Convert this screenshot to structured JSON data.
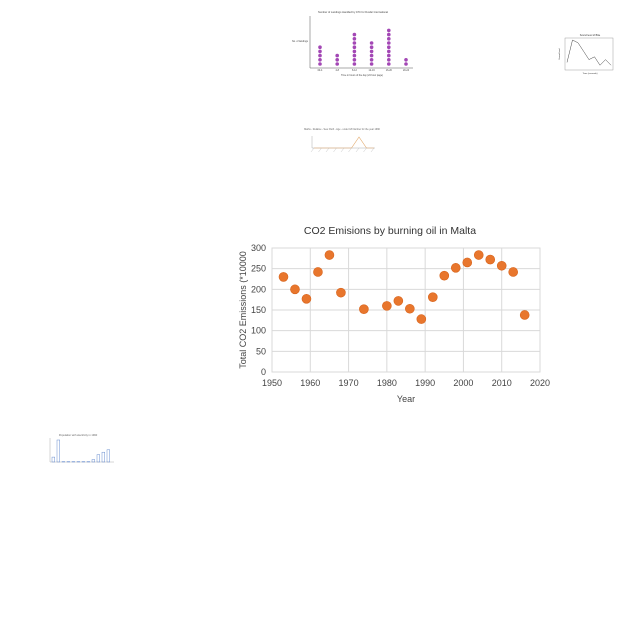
{
  "chart_data": [
    {
      "type": "scatter",
      "title": "CO2 Emisions by burning oil in Malta",
      "xlabel": "Year",
      "ylabel": "Total CO2 Emissions (*10000",
      "xlim": [
        1950,
        2020
      ],
      "ylim": [
        0,
        300
      ],
      "xticks": [
        1950,
        1960,
        1970,
        1980,
        1990,
        2000,
        2010,
        2020
      ],
      "yticks": [
        0,
        50,
        100,
        150,
        200,
        250,
        300
      ],
      "grid": true,
      "marker_color": "#e8762d",
      "points": [
        [
          1953,
          230
        ],
        [
          1956,
          200
        ],
        [
          1959,
          177
        ],
        [
          1962,
          242
        ],
        [
          1965,
          283
        ],
        [
          1968,
          192
        ],
        [
          1974,
          152
        ],
        [
          1980,
          160
        ],
        [
          1983,
          172
        ],
        [
          1986,
          153
        ],
        [
          1989,
          128
        ],
        [
          1992,
          181
        ],
        [
          1995,
          233
        ],
        [
          1998,
          252
        ],
        [
          2001,
          265
        ],
        [
          2004,
          283
        ],
        [
          2007,
          272
        ],
        [
          2010,
          257
        ],
        [
          2013,
          242
        ],
        [
          2016,
          138
        ]
      ]
    },
    {
      "type": "dot",
      "title": "Number of Landings Handled by ATC for Dusfar International",
      "xlabel": "Time in hours of the day (24 hour page)",
      "ylabel": "No. of landings",
      "categories": [
        "00-4",
        "4-8",
        "8-12",
        "12-16",
        "16-20",
        "20-24"
      ],
      "values": [
        5,
        3,
        8,
        6,
        9,
        2
      ],
      "marker_color": "#a347b5"
    },
    {
      "type": "line",
      "title": "Sound level of Bike",
      "xlabel": "Time (seconds)",
      "ylabel": "Sound level",
      "values": [
        2,
        10,
        9,
        6,
        3,
        4,
        1,
        3,
        1
      ]
    },
    {
      "type": "line",
      "title": "Maths - Relative - Sea: Ruth - Age - under 18 Number for the year 1990",
      "values": [
        0,
        0,
        0,
        0,
        0,
        0,
        5,
        0,
        0
      ]
    },
    {
      "type": "bar",
      "title": "Population with electricity in 1990",
      "values": [
        2,
        9,
        0,
        0,
        0,
        0,
        0,
        0,
        1,
        3,
        4,
        5
      ]
    }
  ]
}
